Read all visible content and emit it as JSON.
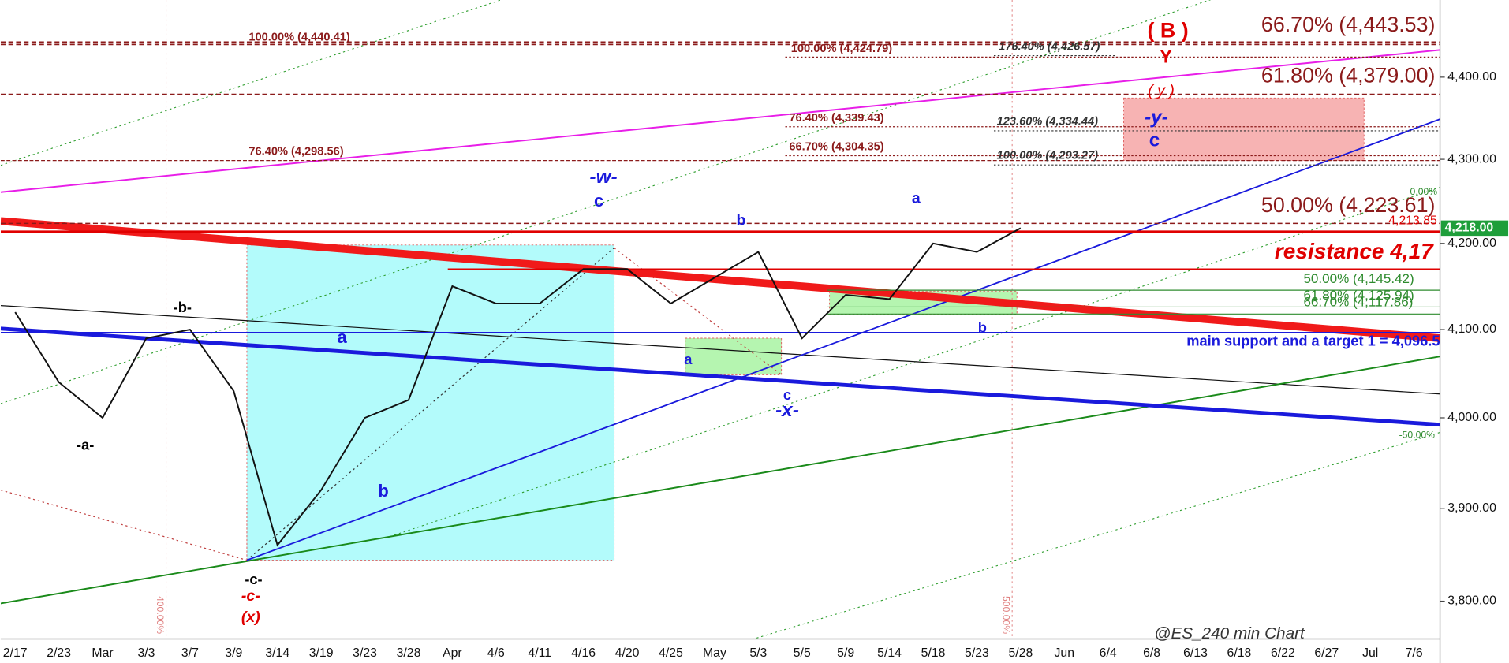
{
  "chart_data": {
    "type": "line",
    "title": "@ES_240 min Chart",
    "log_scale": true,
    "ylim": [
      3760,
      4496
    ],
    "yticks": [
      {
        "value": 3800,
        "label": "3,800.00"
      },
      {
        "value": 3900,
        "label": "3,900.00"
      },
      {
        "value": 4000,
        "label": "4,000.00"
      },
      {
        "value": 4100,
        "label": "4,100.00"
      },
      {
        "value": 4200,
        "label": "4,200.00"
      },
      {
        "value": 4300,
        "label": "4,300.00"
      },
      {
        "value": 4400,
        "label": "4,400.00"
      }
    ],
    "categories": [
      "2/17",
      "2/23",
      "Mar",
      "3/3",
      "3/7",
      "3/9",
      "3/14",
      "3/19",
      "3/23",
      "3/28",
      "Apr",
      "4/6",
      "4/11",
      "4/16",
      "4/20",
      "4/25",
      "May",
      "5/3",
      "5/5",
      "5/9",
      "5/14",
      "5/18",
      "5/23",
      "5/28",
      "Jun",
      "6/4",
      "6/8",
      "6/13",
      "6/18",
      "6/22",
      "6/27",
      "Jul",
      "7/6"
    ],
    "series": [
      {
        "name": "ES",
        "color": "#111111",
        "values": [
          4120,
          4040,
          4000,
          4090,
          4100,
          4030,
          3860,
          3920,
          4000,
          4020,
          4150,
          4130,
          4130,
          4170,
          4170,
          4130,
          4160,
          4190,
          4090,
          4140,
          4135,
          4200,
          4190,
          4218,
          null,
          null,
          null,
          null,
          null,
          null,
          null,
          null,
          null
        ]
      }
    ],
    "last_price": {
      "value": 4218,
      "label": "4,218.00",
      "color": "#1e9e3a"
    },
    "levels": [
      {
        "value": 4440.41,
        "label": "100.00% (4,440.41)",
        "color": "#8b1a1a"
      },
      {
        "value": 4443.53,
        "label": "66.70% (4,443.53)",
        "color": "#8b1a1a"
      },
      {
        "value": 4379.0,
        "label": "61.80% (4,379.00)",
        "color": "#8b1a1a"
      },
      {
        "value": 4298.56,
        "label": "76.40% (4,298.56)",
        "color": "#8b1a1a"
      },
      {
        "value": 4223.61,
        "label": "50.00% (4,223.61)",
        "color": "#8b1a1a"
      },
      {
        "value": 4424.79,
        "label": "100.00% (4,424.79)",
        "color": "#8b1a1a"
      },
      {
        "value": 4426.57,
        "label": "176.40% (4,426.57)",
        "color": "#333333"
      },
      {
        "value": 4339.43,
        "label": "76.40% (4,339.43)",
        "color": "#8b1a1a"
      },
      {
        "value": 4334.44,
        "label": "123.60% (4,334.44)",
        "color": "#333333"
      },
      {
        "value": 4304.35,
        "label": "66.70% (4,304.35)",
        "color": "#8b1a1a"
      },
      {
        "value": 4293.27,
        "label": "100.00% (4,293.27)",
        "color": "#333333"
      },
      {
        "value": 4213.85,
        "label": "4,213.85",
        "color": "#e00000"
      },
      {
        "value": 4145.42,
        "label": "50.00% (4,145.42)",
        "color": "#2e8b2e"
      },
      {
        "value": 4125.94,
        "label": "61.80% (4,125.94)",
        "color": "#2e8b2e"
      },
      {
        "value": 4117.86,
        "label": "66.70% (4,117.86)",
        "color": "#2e8b2e"
      },
      {
        "value": 4170,
        "label": "resistance 4,17",
        "color": "#e00000"
      },
      {
        "value": 4096.5,
        "label": "main support and a target 1 = 4,096.5",
        "color": "#1a1adc"
      }
    ],
    "annotations": [
      {
        "text": "-w-",
        "color": "#1a1adc"
      },
      {
        "text": "c",
        "color": "#1a1adc"
      },
      {
        "text": "a",
        "color": "#1a1adc"
      },
      {
        "text": "b",
        "color": "#1a1adc"
      },
      {
        "text": "a",
        "color": "#1a1adc"
      },
      {
        "text": "b",
        "color": "#1a1adc"
      },
      {
        "text": "-b-",
        "color": "#000000"
      },
      {
        "text": "-a-",
        "color": "#000000"
      },
      {
        "text": "-c-",
        "color": "#000000"
      },
      {
        "text": "-c-",
        "color": "#e00000"
      },
      {
        "text": "(x)",
        "color": "#e00000"
      },
      {
        "text": "a",
        "color": "#1a1adc"
      },
      {
        "text": "c",
        "color": "#1a1adc"
      },
      {
        "text": "-x-",
        "color": "#1a1adc"
      },
      {
        "text": "b",
        "color": "#1a1adc"
      },
      {
        "text": "( B )",
        "color": "#e00000"
      },
      {
        "text": "Y",
        "color": "#e00000"
      },
      {
        "text": "( y )",
        "color": "#e00000"
      },
      {
        "text": "-y-",
        "color": "#1a1adc"
      },
      {
        "text": "c",
        "color": "#1a1adc"
      },
      {
        "text": "0.00%",
        "color": "#2e8b2e"
      },
      {
        "text": "-50.00%",
        "color": "#2e8b2e"
      },
      {
        "text": "400.00%",
        "color": "#e08080"
      },
      {
        "text": "500.00%",
        "color": "#e08080"
      }
    ]
  }
}
